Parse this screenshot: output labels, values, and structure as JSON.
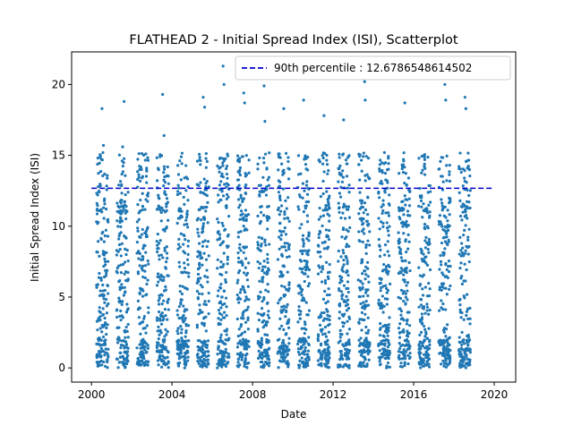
{
  "chart_data": {
    "type": "scatter",
    "title": "FLATHEAD 2 - Initial Spread Index (ISI), Scatterplot",
    "xlabel": "Date",
    "ylabel": "Initial Spread Index (ISI)",
    "x_axis_type": "date",
    "xlim": [
      "1999-01-06",
      "2021-01-25"
    ],
    "ylim": [
      -1.0,
      22.3
    ],
    "xticks": [
      "2000",
      "2004",
      "2008",
      "2012",
      "2016",
      "2020"
    ],
    "yticks": [
      0,
      5,
      10,
      15,
      20
    ],
    "grid": false,
    "legend_position": "top-right",
    "point_color": "#1f77b4",
    "seasons": [
      {
        "year": 2000,
        "start": "2000-04-01",
        "end": "2000-10-31"
      },
      {
        "year": 2001,
        "start": "2001-04-01",
        "end": "2001-10-31"
      },
      {
        "year": 2002,
        "start": "2002-04-01",
        "end": "2002-10-31"
      },
      {
        "year": 2003,
        "start": "2003-04-01",
        "end": "2003-10-31"
      },
      {
        "year": 2004,
        "start": "2004-04-01",
        "end": "2004-10-31"
      },
      {
        "year": 2005,
        "start": "2005-04-01",
        "end": "2005-10-31"
      },
      {
        "year": 2006,
        "start": "2006-04-01",
        "end": "2006-10-31"
      },
      {
        "year": 2007,
        "start": "2007-04-01",
        "end": "2007-10-31"
      },
      {
        "year": 2008,
        "start": "2008-04-01",
        "end": "2008-10-31"
      },
      {
        "year": 2009,
        "start": "2009-04-01",
        "end": "2009-10-31"
      },
      {
        "year": 2010,
        "start": "2010-04-01",
        "end": "2010-10-31"
      },
      {
        "year": 2011,
        "start": "2011-04-01",
        "end": "2011-10-31"
      },
      {
        "year": 2012,
        "start": "2012-04-01",
        "end": "2012-10-31"
      },
      {
        "year": 2013,
        "start": "2013-04-01",
        "end": "2013-10-31"
      },
      {
        "year": 2014,
        "start": "2014-04-01",
        "end": "2014-10-31"
      },
      {
        "year": 2015,
        "start": "2015-04-01",
        "end": "2015-10-31"
      },
      {
        "year": 2016,
        "start": "2016-04-01",
        "end": "2016-10-31"
      },
      {
        "year": 2017,
        "start": "2017-04-01",
        "end": "2017-10-31"
      },
      {
        "year": 2018,
        "start": "2018-04-01",
        "end": "2018-10-31"
      }
    ],
    "points": [
      {
        "x": "2000-07-10",
        "y": 18.3
      },
      {
        "x": "2000-08-05",
        "y": 15.7
      },
      {
        "x": "2001-08-15",
        "y": 18.8
      },
      {
        "x": "2001-07-20",
        "y": 15.6
      },
      {
        "x": "2003-07-15",
        "y": 19.3
      },
      {
        "x": "2003-08-10",
        "y": 16.4
      },
      {
        "x": "2005-07-20",
        "y": 19.1
      },
      {
        "x": "2005-08-15",
        "y": 18.4
      },
      {
        "x": "2006-07-15",
        "y": 21.3
      },
      {
        "x": "2006-08-01",
        "y": 20.0
      },
      {
        "x": "2007-07-25",
        "y": 19.4
      },
      {
        "x": "2007-08-10",
        "y": 18.7
      },
      {
        "x": "2008-07-28",
        "y": 19.9
      },
      {
        "x": "2008-08-12",
        "y": 17.4
      },
      {
        "x": "2009-07-20",
        "y": 18.3
      },
      {
        "x": "2010-07-15",
        "y": 18.9
      },
      {
        "x": "2011-07-20",
        "y": 17.8
      },
      {
        "x": "2012-07-10",
        "y": 17.5
      },
      {
        "x": "2013-07-25",
        "y": 20.2
      },
      {
        "x": "2013-08-05",
        "y": 18.9
      },
      {
        "x": "2014-07-20",
        "y": 15.2
      },
      {
        "x": "2015-07-25",
        "y": 18.7
      },
      {
        "x": "2016-07-20",
        "y": 14.7
      },
      {
        "x": "2017-07-20",
        "y": 20.0
      },
      {
        "x": "2017-08-05",
        "y": 18.9
      },
      {
        "x": "2018-07-20",
        "y": 19.1
      },
      {
        "x": "2018-08-05",
        "y": 18.3
      }
    ],
    "reference_lines": [
      {
        "name": "90th percentile : 12.6786548614502",
        "y": 12.6786548614502,
        "color": "#0000cc",
        "style": "dashed",
        "x_start": "2000-01-01",
        "x_end": "2020-01-01"
      }
    ]
  }
}
